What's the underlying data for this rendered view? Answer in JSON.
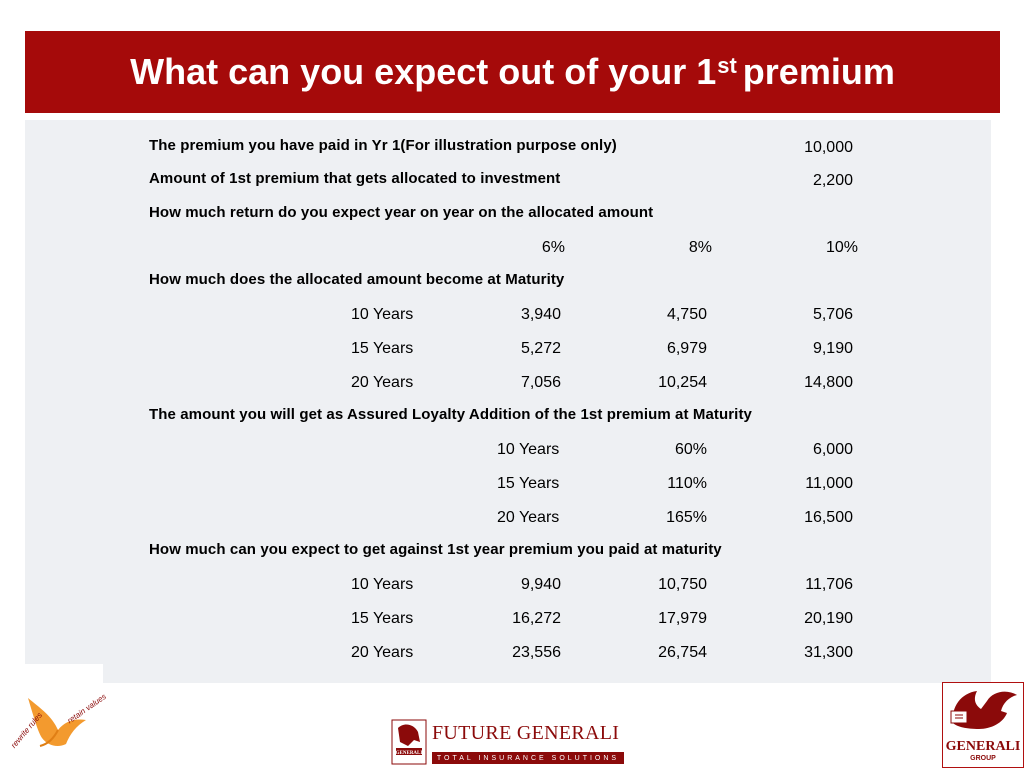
{
  "slide": {
    "title_main": "What can you expect out of your 1",
    "title_sup": "st",
    "title_end": "premium"
  },
  "table": {
    "premium_paid": {
      "question": "The premium you have paid in Yr 1(For illustration purpose only)",
      "value": "10,000"
    },
    "allocated": {
      "question": "Amount of 1st premium that gets allocated to investment",
      "value": "2,200"
    },
    "return_q": "How much return do you expect year on year on the allocated amount",
    "rates": [
      "6%",
      "8%",
      "10%"
    ],
    "maturity_q": "How much does the allocated amount become at Maturity",
    "maturity_rows": [
      {
        "term": "10 Years",
        "v1": "3,940",
        "v2": "4,750",
        "v3": "5,706"
      },
      {
        "term": "15 Years",
        "v1": "5,272",
        "v2": "6,979",
        "v3": "9,190"
      },
      {
        "term": "20 Years",
        "v1": "7,056",
        "v2": "10,254",
        "v3": "14,800"
      }
    ],
    "loyalty_q": "The amount you will get as Assured Loyalty Addition of the 1st premium at Maturity",
    "loyalty_rows": [
      {
        "term": "10 Years",
        "pct": "60%",
        "amount": "6,000"
      },
      {
        "term": "15 Years",
        "pct": "110%",
        "amount": "11,000"
      },
      {
        "term": "20 Years",
        "pct": "165%",
        "amount": "16,500"
      }
    ],
    "total_q": "How much can you expect to get against 1st year premium you paid at maturity",
    "total_rows": [
      {
        "term": "10 Years",
        "v1": "9,940",
        "v2": "10,750",
        "v3": "11,706"
      },
      {
        "term": "15 Years",
        "v1": "16,272",
        "v2": "17,979",
        "v3": "20,190"
      },
      {
        "term": "20 Years",
        "v1": "23,556",
        "v2": "26,754",
        "v3": "31,300"
      }
    ]
  },
  "logos": {
    "left_tag1": "rewrite rules",
    "left_tag2": "retain values",
    "center_name": "FUTURE GENERALI",
    "center_tagline": "TOTAL INSURANCE SOLUTIONS",
    "center_badge": "GENERALI",
    "right_name": "GENERALI",
    "right_sub": "GROUP",
    "brand_red": "#a50a0a",
    "orange": "#f39a2e"
  }
}
